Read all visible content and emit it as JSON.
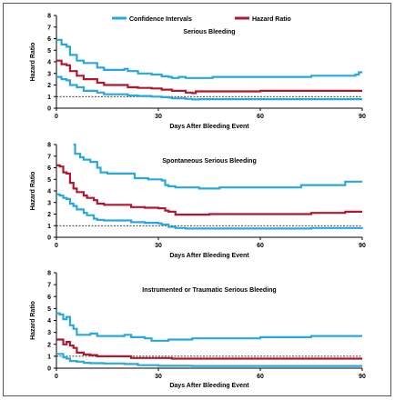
{
  "legend": {
    "items": [
      {
        "label": "Confidence Intervals",
        "color": "#29a8dc"
      },
      {
        "label": "Hazard Ratio",
        "color": "#b0182f"
      }
    ]
  },
  "chart_data": [
    {
      "type": "line",
      "title": "Serious Bleeding",
      "xlabel": "Days After Bleeding Event",
      "ylabel": "Hazard Ratio",
      "xlim": [
        0,
        90
      ],
      "ylim": [
        0,
        8
      ],
      "xticks": [
        0,
        30,
        60,
        90
      ],
      "yticks": [
        0,
        1,
        2,
        3,
        4,
        5,
        6,
        7,
        8
      ],
      "reference_line": 1,
      "series": [
        {
          "role": "upper-ci",
          "color": "#29a8dc",
          "points": [
            [
              0,
              5.9
            ],
            [
              1,
              5.9
            ],
            [
              1.5,
              5.5
            ],
            [
              3,
              5.3
            ],
            [
              4,
              4.6
            ],
            [
              6,
              4.1
            ],
            [
              8,
              3.9
            ],
            [
              10,
              3.9
            ],
            [
              12,
              3.5
            ],
            [
              14,
              3.3
            ],
            [
              20,
              3.4
            ],
            [
              21,
              3.2
            ],
            [
              24,
              3.0
            ],
            [
              28,
              2.9
            ],
            [
              31,
              2.75
            ],
            [
              33,
              2.7
            ],
            [
              34,
              2.6
            ],
            [
              36,
              2.7
            ],
            [
              38,
              2.6
            ],
            [
              40,
              2.6
            ],
            [
              46,
              2.7
            ],
            [
              60,
              2.7
            ],
            [
              75,
              2.8
            ],
            [
              88,
              2.9
            ],
            [
              89,
              3.1
            ],
            [
              90,
              3.1
            ]
          ]
        },
        {
          "role": "hazard-ratio",
          "color": "#b0182f",
          "points": [
            [
              0,
              4.1
            ],
            [
              1,
              4.1
            ],
            [
              1.5,
              3.8
            ],
            [
              3,
              3.7
            ],
            [
              4,
              3.2
            ],
            [
              6,
              2.8
            ],
            [
              8,
              2.5
            ],
            [
              10,
              2.5
            ],
            [
              12,
              2.2
            ],
            [
              14,
              2.0
            ],
            [
              20,
              2.0
            ],
            [
              21,
              1.8
            ],
            [
              24,
              1.75
            ],
            [
              28,
              1.7
            ],
            [
              31,
              1.6
            ],
            [
              33,
              1.6
            ],
            [
              34,
              1.5
            ],
            [
              36,
              1.5
            ],
            [
              38,
              1.35
            ],
            [
              40,
              1.3
            ],
            [
              41,
              1.45
            ],
            [
              52,
              1.45
            ],
            [
              60,
              1.5
            ],
            [
              90,
              1.5
            ]
          ]
        },
        {
          "role": "lower-ci",
          "color": "#29a8dc",
          "points": [
            [
              0,
              2.7
            ],
            [
              1,
              2.7
            ],
            [
              1.5,
              2.5
            ],
            [
              3,
              2.4
            ],
            [
              4,
              2.0
            ],
            [
              6,
              1.8
            ],
            [
              8,
              1.5
            ],
            [
              10,
              1.5
            ],
            [
              12,
              1.35
            ],
            [
              14,
              1.2
            ],
            [
              20,
              1.2
            ],
            [
              21,
              1.1
            ],
            [
              24,
              1.05
            ],
            [
              28,
              1.0
            ],
            [
              31,
              0.95
            ],
            [
              33,
              0.92
            ],
            [
              34,
              0.85
            ],
            [
              36,
              0.85
            ],
            [
              38,
              0.8
            ],
            [
              40,
              0.75
            ],
            [
              42,
              0.78
            ],
            [
              60,
              0.78
            ],
            [
              90,
              0.78
            ]
          ]
        }
      ]
    },
    {
      "type": "line",
      "title": "Spontaneous Serious Bleeding",
      "xlabel": "Days After Bleeding Event",
      "ylabel": "Hazard Ratio",
      "xlim": [
        0,
        90
      ],
      "ylim": [
        0,
        8
      ],
      "xticks": [
        0,
        30,
        60,
        90
      ],
      "yticks": [
        0,
        1,
        2,
        3,
        4,
        5,
        6,
        7,
        8
      ],
      "reference_line": 1,
      "series": [
        {
          "role": "upper-ci",
          "color": "#29a8dc",
          "points": [
            [
              5,
              8.0
            ],
            [
              5.5,
              7.2
            ],
            [
              7,
              6.9
            ],
            [
              8,
              6.7
            ],
            [
              9,
              6.7
            ],
            [
              10,
              6.5
            ],
            [
              12,
              6.0
            ],
            [
              13,
              5.6
            ],
            [
              15,
              5.5
            ],
            [
              22,
              5.5
            ],
            [
              23,
              5.1
            ],
            [
              27,
              5.0
            ],
            [
              30,
              5.0
            ],
            [
              31,
              4.9
            ],
            [
              32,
              4.5
            ],
            [
              33,
              4.4
            ],
            [
              35,
              4.3
            ],
            [
              40,
              4.3
            ],
            [
              42,
              4.2
            ],
            [
              48,
              4.3
            ],
            [
              60,
              4.3
            ],
            [
              72,
              4.5
            ],
            [
              85,
              4.8
            ],
            [
              90,
              4.8
            ]
          ]
        },
        {
          "role": "hazard-ratio",
          "color": "#b0182f",
          "points": [
            [
              0,
              6.2
            ],
            [
              1,
              6.1
            ],
            [
              2,
              5.6
            ],
            [
              3,
              5.5
            ],
            [
              4,
              4.7
            ],
            [
              5,
              4.2
            ],
            [
              6,
              3.9
            ],
            [
              8,
              3.6
            ],
            [
              9,
              3.4
            ],
            [
              11,
              3.2
            ],
            [
              12,
              2.9
            ],
            [
              14,
              2.8
            ],
            [
              20,
              2.8
            ],
            [
              22,
              2.6
            ],
            [
              26,
              2.55
            ],
            [
              30,
              2.5
            ],
            [
              32,
              2.3
            ],
            [
              33,
              2.2
            ],
            [
              35,
              1.95
            ],
            [
              38,
              1.95
            ],
            [
              40,
              1.95
            ],
            [
              45,
              2.0
            ],
            [
              60,
              2.0
            ],
            [
              75,
              2.1
            ],
            [
              85,
              2.2
            ],
            [
              90,
              2.2
            ]
          ]
        },
        {
          "role": "lower-ci",
          "color": "#29a8dc",
          "points": [
            [
              0,
              3.7
            ],
            [
              1,
              3.6
            ],
            [
              2,
              3.4
            ],
            [
              3,
              3.3
            ],
            [
              4,
              2.9
            ],
            [
              5,
              2.7
            ],
            [
              6,
              2.4
            ],
            [
              8,
              2.1
            ],
            [
              9,
              1.9
            ],
            [
              11,
              1.6
            ],
            [
              12,
              1.5
            ],
            [
              14,
              1.45
            ],
            [
              20,
              1.45
            ],
            [
              22,
              1.3
            ],
            [
              26,
              1.25
            ],
            [
              30,
              1.2
            ],
            [
              31,
              1.1
            ],
            [
              33,
              0.9
            ],
            [
              35,
              0.8
            ],
            [
              38,
              0.75
            ],
            [
              42,
              0.75
            ],
            [
              60,
              0.75
            ],
            [
              75,
              0.8
            ],
            [
              90,
              0.85
            ]
          ]
        }
      ]
    },
    {
      "type": "line",
      "title": "Instrumented or Traumatic Serious Bleeding",
      "xlabel": "Days After Bleeding Event",
      "ylabel": "Hazard Ratio",
      "xlim": [
        0,
        90
      ],
      "ylim": [
        0,
        8
      ],
      "xticks": [
        0,
        30,
        60,
        90
      ],
      "yticks": [
        0,
        1,
        2,
        3,
        4,
        5,
        6,
        7,
        8
      ],
      "reference_line": 1,
      "series": [
        {
          "role": "upper-ci",
          "color": "#29a8dc",
          "points": [
            [
              0,
              4.6
            ],
            [
              1,
              4.5
            ],
            [
              2,
              4.1
            ],
            [
              3,
              4.3
            ],
            [
              4,
              3.6
            ],
            [
              5,
              3.3
            ],
            [
              6,
              2.8
            ],
            [
              8,
              2.8
            ],
            [
              10,
              2.9
            ],
            [
              12,
              2.7
            ],
            [
              20,
              2.8
            ],
            [
              22,
              2.6
            ],
            [
              26,
              2.5
            ],
            [
              28,
              2.3
            ],
            [
              30,
              2.3
            ],
            [
              33,
              2.4
            ],
            [
              40,
              2.5
            ],
            [
              60,
              2.6
            ],
            [
              75,
              2.7
            ],
            [
              90,
              2.7
            ]
          ]
        },
        {
          "role": "hazard-ratio",
          "color": "#b0182f",
          "points": [
            [
              0,
              2.4
            ],
            [
              1,
              2.4
            ],
            [
              2,
              2.0
            ],
            [
              3,
              2.2
            ],
            [
              4,
              1.9
            ],
            [
              5,
              1.7
            ],
            [
              6,
              1.3
            ],
            [
              8,
              1.15
            ],
            [
              10,
              1.1
            ],
            [
              12,
              1.0
            ],
            [
              20,
              1.0
            ],
            [
              22,
              0.85
            ],
            [
              30,
              0.85
            ],
            [
              34,
              0.8
            ],
            [
              40,
              0.8
            ],
            [
              60,
              0.8
            ],
            [
              90,
              0.8
            ]
          ]
        },
        {
          "role": "lower-ci",
          "color": "#29a8dc",
          "points": [
            [
              0,
              1.2
            ],
            [
              1,
              1.2
            ],
            [
              2,
              0.9
            ],
            [
              3,
              0.8
            ],
            [
              4,
              0.6
            ],
            [
              6,
              0.55
            ],
            [
              8,
              0.45
            ],
            [
              10,
              0.42
            ],
            [
              14,
              0.4
            ],
            [
              20,
              0.35
            ],
            [
              24,
              0.25
            ],
            [
              28,
              0.25
            ],
            [
              30,
              0.2
            ],
            [
              40,
              0.18
            ],
            [
              60,
              0.18
            ],
            [
              90,
              0.18
            ]
          ]
        }
      ]
    }
  ]
}
